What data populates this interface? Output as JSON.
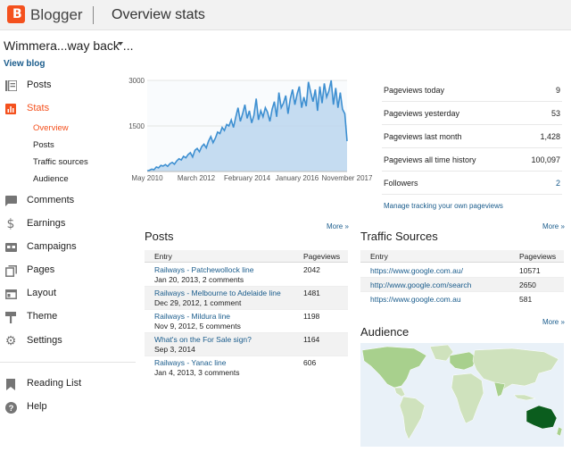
{
  "app": {
    "name": "Blogger",
    "page_title": "Overview stats"
  },
  "blog": {
    "name": "Wimmera...way back ...",
    "view_blog": "View blog"
  },
  "nav": {
    "items": [
      {
        "label": "Posts",
        "icon": "posts-icon"
      },
      {
        "label": "Stats",
        "icon": "stats-icon",
        "active": true
      },
      {
        "label": "Comments",
        "icon": "comments-icon"
      },
      {
        "label": "Earnings",
        "icon": "dollar-icon"
      },
      {
        "label": "Campaigns",
        "icon": "campaigns-icon"
      },
      {
        "label": "Pages",
        "icon": "pages-icon"
      },
      {
        "label": "Layout",
        "icon": "layout-icon"
      },
      {
        "label": "Theme",
        "icon": "theme-brush-icon"
      },
      {
        "label": "Settings",
        "icon": "gear-icon"
      }
    ],
    "stats_sub": [
      "Overview",
      "Posts",
      "Traffic sources",
      "Audience"
    ],
    "bottom": [
      {
        "label": "Reading List",
        "icon": "bookmark-icon"
      },
      {
        "label": "Help",
        "icon": "help-icon"
      }
    ]
  },
  "chart_data": {
    "type": "area",
    "yticks": [
      "3000",
      "1500"
    ],
    "ylim": [
      0,
      3000
    ],
    "xticks": [
      "May 2010",
      "March 2012",
      "February 2014",
      "January 2016",
      "November 2017"
    ],
    "series": [
      {
        "name": "Pageviews",
        "values": [
          20,
          40,
          80,
          60,
          150,
          120,
          200,
          180,
          230,
          170,
          260,
          300,
          240,
          350,
          420,
          380,
          500,
          450,
          560,
          620,
          480,
          700,
          760,
          650,
          820,
          900,
          780,
          1000,
          1150,
          950,
          1100,
          1300,
          1250,
          1450,
          1350,
          1550,
          1500,
          1700,
          1450,
          1800,
          2100,
          1650,
          1900,
          2200,
          1750,
          2000,
          1600,
          1850,
          2400,
          1700,
          2000,
          1800,
          2100,
          1950,
          1650,
          2050,
          2300,
          1800,
          2600,
          2100,
          2250,
          2500,
          1900,
          2400,
          2700,
          2200,
          2550,
          2800,
          2100,
          2450,
          2150,
          2950,
          2600,
          2300,
          2700,
          2000,
          2800,
          2250,
          2900,
          2450,
          2650,
          3000,
          2200,
          2750,
          2100,
          2600,
          2050,
          1900,
          1000
        ]
      }
    ]
  },
  "stats": [
    {
      "label": "Pageviews today",
      "value": "9"
    },
    {
      "label": "Pageviews yesterday",
      "value": "53"
    },
    {
      "label": "Pageviews last month",
      "value": "1,428"
    },
    {
      "label": "Pageviews all time history",
      "value": "100,097"
    },
    {
      "label": "Followers",
      "value": "2"
    }
  ],
  "manage_link": "Manage tracking your own pageviews",
  "more": "More »",
  "posts": {
    "title": "Posts",
    "col_entry": "Entry",
    "col_views": "Pageviews",
    "rows": [
      {
        "title": "Railways - Patchewollock line",
        "date": "Jan 20, 2013, 2 comments",
        "views": "2042"
      },
      {
        "title": "Railways - Melbourne to Adelaide line",
        "date": "Dec 29, 2012, 1 comment",
        "views": "1481"
      },
      {
        "title": "Railways - Mildura line",
        "date": "Nov 9, 2012, 5 comments",
        "views": "1198"
      },
      {
        "title": "What's on the For Sale sign?",
        "date": "Sep 3, 2014",
        "views": "1164"
      },
      {
        "title": "Railways - Yanac line",
        "date": "Jan 4, 2013, 3 comments",
        "views": "606"
      }
    ]
  },
  "traffic": {
    "title": "Traffic Sources",
    "col_entry": "Entry",
    "col_views": "Pageviews",
    "rows": [
      {
        "url": "https://www.google.com.au/",
        "views": "10571"
      },
      {
        "url": "http://www.google.com/search",
        "views": "2650"
      },
      {
        "url": "https://www.google.com.au",
        "views": "581"
      }
    ]
  },
  "audience": {
    "title": "Audience"
  },
  "colors": {
    "accent": "#f4511e",
    "link": "#1a5c8c",
    "chart_line": "#3d8fd1",
    "chart_fill": "#bcd6ef",
    "map_dark": "#0b5d1e",
    "map_light": "#a8d08d"
  }
}
